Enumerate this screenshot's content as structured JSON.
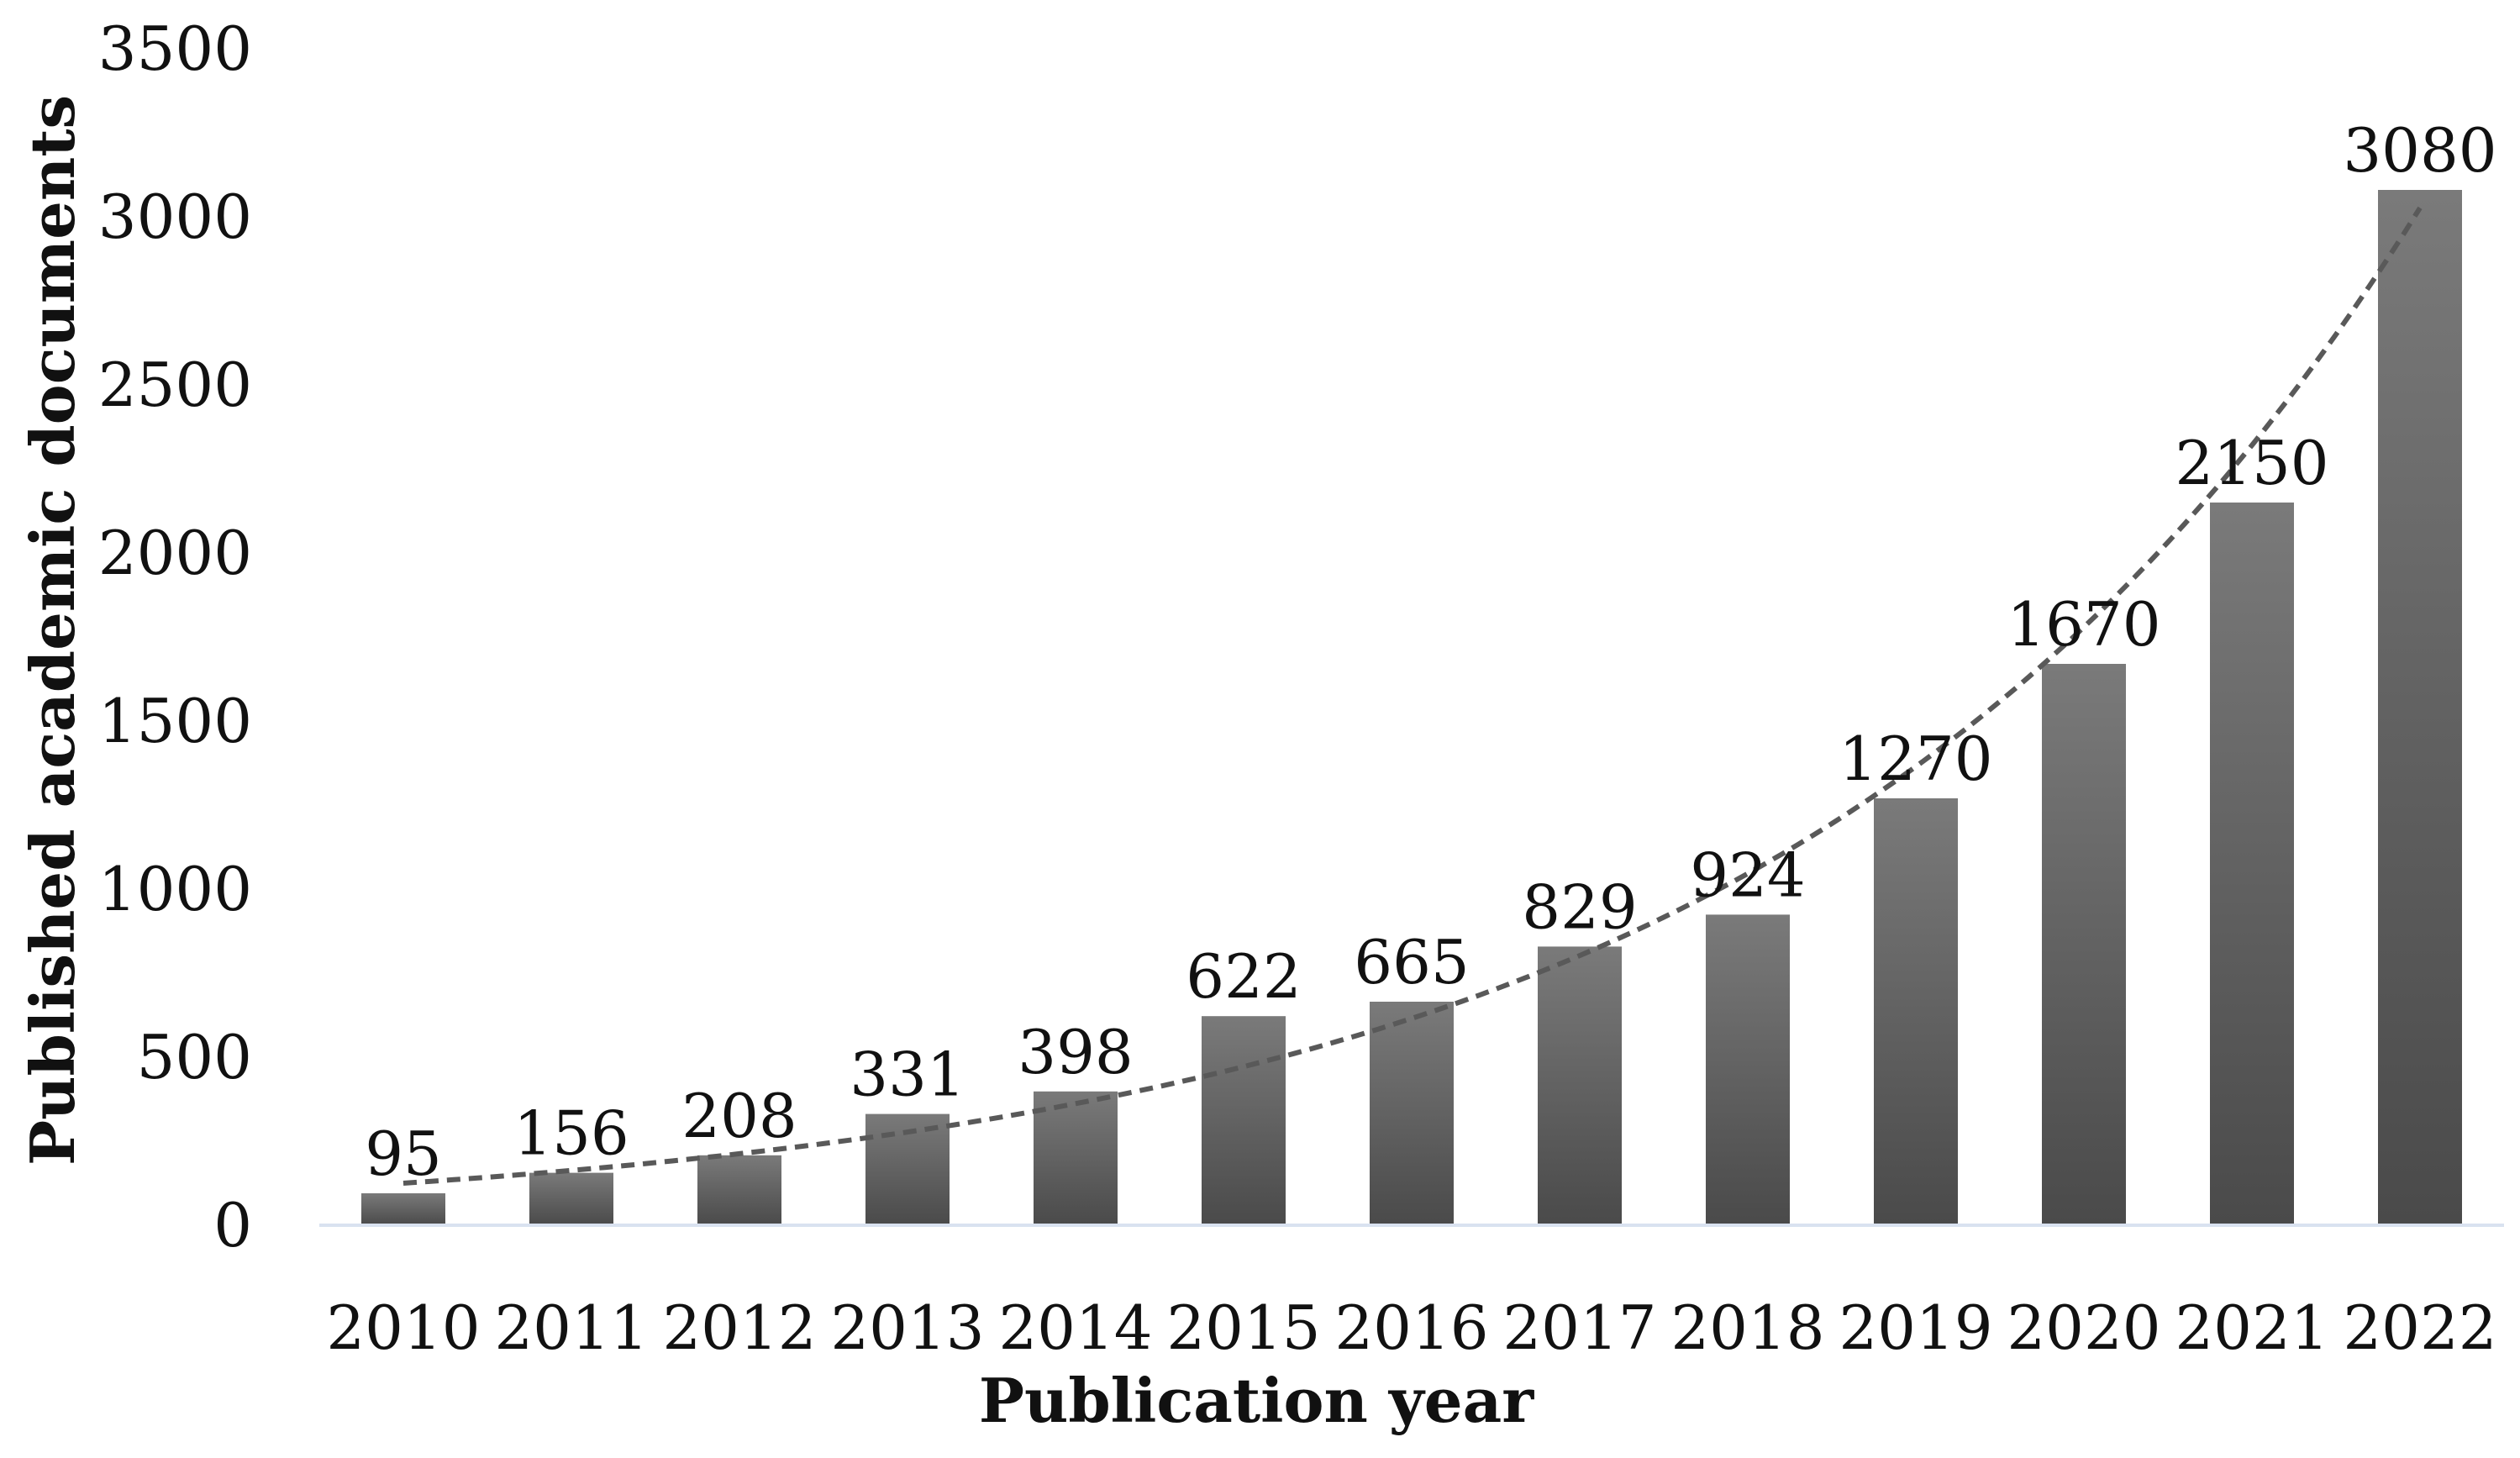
{
  "chart_data": {
    "type": "bar",
    "title": "",
    "xlabel": "Publication year",
    "ylabel": "Published academic documents",
    "categories": [
      "2010",
      "2011",
      "2012",
      "2013",
      "2014",
      "2015",
      "2016",
      "2017",
      "2018",
      "2019",
      "2020",
      "2021",
      "2022"
    ],
    "series": [
      {
        "values": [
          95,
          156,
          208,
          331,
          398,
          622,
          665,
          829,
          924,
          1270,
          1670,
          2150,
          3080
        ]
      }
    ],
    "data_labels": [
      "95",
      "156",
      "208",
      "331",
      "398",
      "622",
      "665",
      "829",
      "924",
      "1270",
      "1670",
      "2150",
      "3080"
    ],
    "ylim": [
      0,
      3500
    ],
    "yticks": [
      "0",
      "500",
      "1000",
      "1500",
      "2000",
      "2500",
      "3000",
      "3500"
    ],
    "grid": false,
    "legend": "none",
    "trendline": {
      "type": "exponential",
      "style": "dashed",
      "color": "#595959"
    },
    "colors": {
      "bar_top": "#7a7a7a",
      "bar_bottom": "#4a4a4a",
      "axis_line": "#d9e2f0",
      "text": "#111111"
    }
  }
}
